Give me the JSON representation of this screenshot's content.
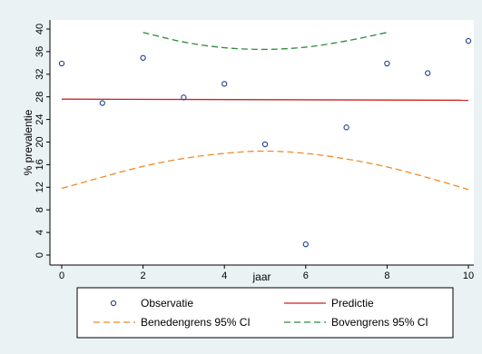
{
  "chart_data": {
    "type": "scatter",
    "xlabel": "jaar",
    "ylabel": "% prevalentie",
    "xlim": [
      0,
      10
    ],
    "ylim": [
      0,
      40
    ],
    "x_ticks": [
      "0",
      "2",
      "4",
      "6",
      "8",
      "10"
    ],
    "y_ticks": [
      "0",
      "4",
      "8",
      "12",
      "16",
      "20",
      "24",
      "28",
      "32",
      "36",
      "40"
    ],
    "grid": false,
    "legend_position": "bottom",
    "series": [
      {
        "name": "Observatie",
        "kind": "scatter",
        "color": "#1f3c8c",
        "x": [
          0,
          1,
          2,
          3,
          4,
          5,
          6,
          7,
          8,
          9,
          10
        ],
        "y": [
          33.9,
          26.9,
          34.9,
          27.9,
          30.3,
          19.6,
          1.9,
          22.6,
          33.9,
          32.2,
          37.9
        ]
      },
      {
        "name": "Predictie",
        "kind": "line",
        "color": "#cc2222",
        "x": [
          0,
          10
        ],
        "y": [
          27.6,
          27.4
        ]
      },
      {
        "name": "Benedengrens 95% CI",
        "kind": "dashed-line",
        "color": "#f08a24",
        "x": [
          0,
          1,
          2,
          3,
          4,
          5,
          6,
          7,
          8,
          9,
          10
        ],
        "y": [
          11.8,
          13.8,
          15.7,
          17.1,
          18.0,
          18.4,
          18.0,
          17.0,
          15.6,
          13.7,
          11.6
        ]
      },
      {
        "name": "Bovengrens 95% CI",
        "kind": "dashed-line",
        "color": "#2e8b3c",
        "x": [
          2,
          3,
          4,
          5,
          6,
          7,
          8
        ],
        "y": [
          39.4,
          37.7,
          36.7,
          36.4,
          36.8,
          37.9,
          39.4
        ]
      }
    ]
  }
}
